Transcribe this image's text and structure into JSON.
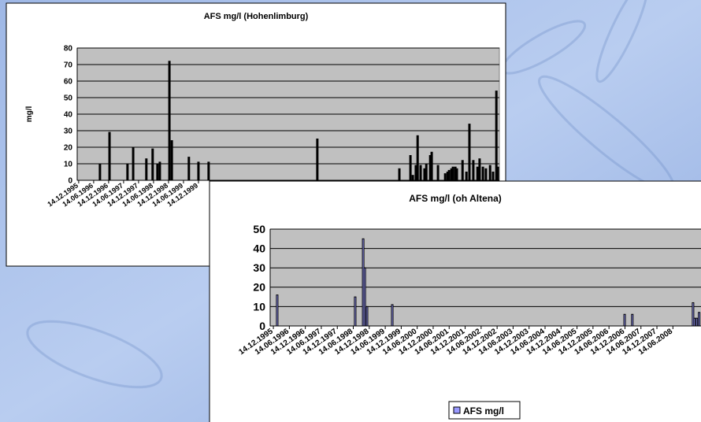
{
  "chart_data": [
    {
      "type": "bar",
      "title": "AFS mg/l (Hohenlimburg)",
      "y_label": "mg/l",
      "x": [
        1996.66,
        1996.98,
        1997.58,
        1997.77,
        1998.21,
        1998.42,
        1998.58,
        1998.66,
        1998.98,
        1999.06,
        1999.63,
        1999.95,
        2000.29,
        2003.92,
        2006.66,
        2007.03,
        2007.11,
        2007.21,
        2007.27,
        2007.37,
        2007.5,
        2007.56,
        2007.69,
        2007.74,
        2007.95,
        2008.19,
        2008.27,
        2008.32,
        2008.4,
        2008.45,
        2008.53,
        2008.58,
        2008.77,
        2008.9,
        2009.0,
        2009.13,
        2009.27,
        2009.34,
        2009.45,
        2009.55,
        2009.69,
        2009.79,
        2009.9,
        2009.95
      ],
      "values": [
        10,
        29,
        10,
        20,
        13,
        19,
        10,
        11,
        72,
        24,
        14,
        11,
        11,
        25,
        7,
        15,
        3,
        9,
        27,
        9,
        7,
        10,
        15,
        17,
        9,
        4,
        5,
        6,
        7,
        8,
        8,
        7,
        12,
        5,
        34,
        12,
        8,
        13,
        8,
        7,
        9,
        5,
        54,
        8
      ],
      "color": "#000000",
      "xlim": [
        1995.9,
        2010.0
      ],
      "xticks": [
        {
          "value": 1995.95,
          "label": "14.12.1995"
        },
        {
          "value": 1996.45,
          "label": "14.06.1996"
        },
        {
          "value": 1996.95,
          "label": "14.12.1996"
        },
        {
          "value": 1997.45,
          "label": "14.06.1997"
        },
        {
          "value": 1997.95,
          "label": "14.12.1997"
        },
        {
          "value": 1998.45,
          "label": "14.06.1998"
        },
        {
          "value": 1998.95,
          "label": "14.12.1998"
        },
        {
          "value": 1999.45,
          "label": "14.06.1999"
        },
        {
          "value": 1999.95,
          "label": "14.12.1999"
        }
      ],
      "ylim": [
        0,
        80
      ],
      "yticks": [
        0,
        10,
        20,
        30,
        40,
        50,
        60,
        70,
        80
      ],
      "grid": true
    },
    {
      "type": "bar",
      "title": "AFS mg/l (oh Altena)",
      "x": [
        1996.07,
        1998.51,
        1998.76,
        1998.81,
        1998.88,
        1999.67,
        2006.94,
        2007.18,
        2009.08,
        2009.13,
        2009.2,
        2009.27
      ],
      "series": [
        {
          "name": "AFS mg/l",
          "color": "#9999ff",
          "values": [
            16,
            15,
            45,
            30,
            10,
            11,
            6,
            6,
            12,
            4,
            4,
            7
          ]
        }
      ],
      "xlim": [
        1995.85,
        2009.6
      ],
      "xticks": [
        {
          "value": 1995.95,
          "label": "14.12.1995"
        },
        {
          "value": 1996.45,
          "label": "14.06.1996"
        },
        {
          "value": 1996.95,
          "label": "14.12.1996"
        },
        {
          "value": 1997.45,
          "label": "14.06.1997"
        },
        {
          "value": 1997.95,
          "label": "14.12.1997"
        },
        {
          "value": 1998.45,
          "label": "14.06.1998"
        },
        {
          "value": 1998.95,
          "label": "14.12.1998"
        },
        {
          "value": 1999.45,
          "label": "14.06.1999"
        },
        {
          "value": 1999.95,
          "label": "14.12.1999"
        },
        {
          "value": 2000.45,
          "label": "14.06.2000"
        },
        {
          "value": 2000.95,
          "label": "14.12.2000"
        },
        {
          "value": 2001.45,
          "label": "14.06.2001"
        },
        {
          "value": 2001.95,
          "label": "14.12.2001"
        },
        {
          "value": 2002.45,
          "label": "14.06.2002"
        },
        {
          "value": 2002.95,
          "label": "14.12.2002"
        },
        {
          "value": 2003.45,
          "label": "14.06.2003"
        },
        {
          "value": 2003.95,
          "label": "14.12.2003"
        },
        {
          "value": 2004.45,
          "label": "14.06.2004"
        },
        {
          "value": 2004.95,
          "label": "14.12.2004"
        },
        {
          "value": 2005.45,
          "label": "14.06.2005"
        },
        {
          "value": 2005.95,
          "label": "14.12.2005"
        },
        {
          "value": 2006.45,
          "label": "14.06.2006"
        },
        {
          "value": 2006.95,
          "label": "14.12.2006"
        },
        {
          "value": 2007.45,
          "label": "14.06.2007"
        },
        {
          "value": 2007.95,
          "label": "14.12.2007"
        },
        {
          "value": 2008.45,
          "label": "14.06.2008"
        }
      ],
      "ylim": [
        0,
        50
      ],
      "yticks": [
        0,
        10,
        20,
        30,
        40,
        50
      ],
      "grid": true,
      "legend": "bottom"
    }
  ]
}
